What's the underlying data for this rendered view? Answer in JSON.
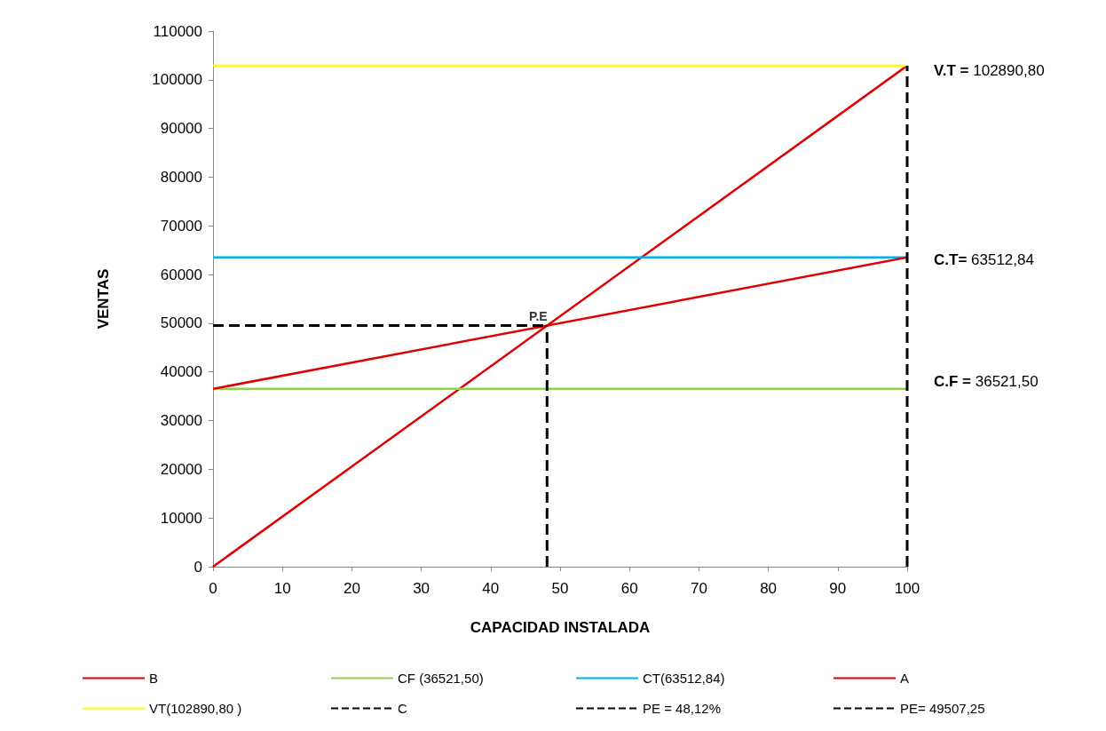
{
  "chart_data": {
    "type": "line",
    "xlabel": "CAPACIDAD INSTALADA",
    "ylabel": "VENTAS",
    "xlim": [
      0,
      100
    ],
    "xticks": [
      0,
      10,
      20,
      30,
      40,
      50,
      60,
      70,
      80,
      90,
      100
    ],
    "ylim": [
      0,
      110000
    ],
    "yticks": [
      0,
      10000,
      20000,
      30000,
      40000,
      50000,
      60000,
      70000,
      80000,
      90000,
      100000,
      110000
    ],
    "grid": false,
    "legend": "bottom",
    "marker": "none",
    "series": [
      {
        "name": "B",
        "color": "#e00000",
        "x": [
          0,
          100
        ],
        "values": [
          0,
          102890.8
        ],
        "line_style": "solid"
      },
      {
        "name": "CF (36521,50)",
        "color": "#92d050",
        "x": [
          0,
          100
        ],
        "values": [
          36521.5,
          36521.5
        ],
        "line_style": "solid"
      },
      {
        "name": "CT(63512,84)",
        "color": "#00b0f0",
        "x": [
          0,
          100
        ],
        "values": [
          63512.84,
          63512.84
        ],
        "line_style": "solid"
      },
      {
        "name": "A",
        "color": "#e00000",
        "x": [
          0,
          100
        ],
        "values": [
          36521.5,
          63512.84
        ],
        "line_style": "solid"
      },
      {
        "name": "VT(102890,80 )",
        "color": "#ffff00",
        "x": [
          0,
          100
        ],
        "values": [
          102890.8,
          102890.8
        ],
        "line_style": "solid"
      },
      {
        "name": "C",
        "color": "#000000",
        "x": [
          100,
          100
        ],
        "values": [
          0,
          102890.8
        ],
        "line_style": "dashed"
      },
      {
        "name": "PE = 48,12%",
        "color": "#000000",
        "x": [
          48.12,
          48.12
        ],
        "values": [
          0,
          49507.25
        ],
        "line_style": "dashed"
      },
      {
        "name": "PE= 49507,25",
        "color": "#000000",
        "x": [
          0,
          48.12
        ],
        "values": [
          49507.25,
          49507.25
        ],
        "line_style": "dashed"
      }
    ],
    "annotations": [
      "V.T = 102890,80",
      "C.T= 63512,84",
      "C.F = 36521,50",
      {
        "text": "P.E",
        "x": 48.12,
        "y": 49507.25
      }
    ]
  }
}
